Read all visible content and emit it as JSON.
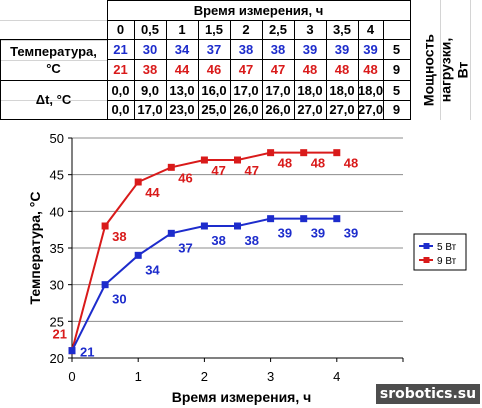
{
  "table": {
    "header": "Время измерения, ч",
    "times": [
      "0",
      "0,5",
      "1",
      "1,5",
      "2",
      "2,5",
      "3",
      "3,5",
      "4"
    ],
    "row_temp_label": "Температура, °C",
    "row_delta_label": "Δt, °C",
    "temp_5": [
      "21",
      "30",
      "34",
      "37",
      "38",
      "38",
      "39",
      "39",
      "39"
    ],
    "temp_9": [
      "21",
      "38",
      "44",
      "46",
      "47",
      "47",
      "48",
      "48",
      "48"
    ],
    "delta_5": [
      "0,0",
      "9,0",
      "13,0",
      "16,0",
      "17,0",
      "17,0",
      "18,0",
      "18,0",
      "18,0"
    ],
    "delta_9": [
      "0,0",
      "17,0",
      "23,0",
      "25,0",
      "26,0",
      "26,0",
      "27,0",
      "27,0",
      "27,0"
    ],
    "power_values": [
      "5",
      "9",
      "5",
      "9"
    ],
    "power_label_line1": "Мощность",
    "power_label_line2": "нагрузки,",
    "power_label_line3": "Вт"
  },
  "chart_data": {
    "type": "line",
    "x": [
      0,
      0.5,
      1,
      1.5,
      2,
      2.5,
      3,
      3.5,
      4
    ],
    "series": [
      {
        "name": "5 Вт",
        "values": [
          21,
          30,
          34,
          37,
          38,
          38,
          39,
          39,
          39
        ],
        "color": "#1d2ccc"
      },
      {
        "name": "9 Вт",
        "values": [
          21,
          38,
          44,
          46,
          47,
          47,
          48,
          48,
          48
        ],
        "color": "#d91a1a"
      }
    ],
    "xlabel": "Время измерения, ч",
    "ylabel": "Температура, °C",
    "xlim": [
      0,
      5
    ],
    "ylim": [
      20,
      50
    ],
    "xticks": [
      0,
      1,
      2,
      3,
      4
    ],
    "yticks": [
      20,
      25,
      30,
      35,
      40,
      45,
      50
    ],
    "grid": "horizontal",
    "legend": "right",
    "data_labels": true
  },
  "watermark": "srobotics.su"
}
